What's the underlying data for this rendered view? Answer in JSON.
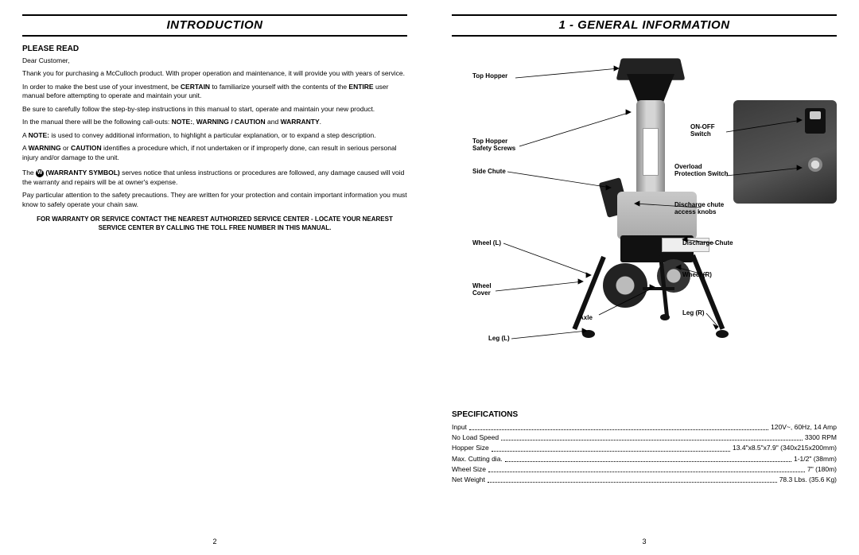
{
  "left": {
    "header": "INTRODUCTION",
    "please_read": "PLEASE READ",
    "dear": "Dear Customer,",
    "p1": "Thank you for purchasing a McCulloch product. With proper operation and maintenance, it will provide you with years of service.",
    "p2a": "In order to make the best use of your investment, be ",
    "p2b": "CERTAIN",
    "p2c": " to familiarize yourself with the contents of the ",
    "p2d": "ENTIRE",
    "p2e": " user manual before attempting to operate and maintain your unit.",
    "p3": "Be sure to carefully follow the step-by-step instructions in this manual to start, operate and maintain your new product.",
    "p4a": "In the manual there will be the following call-outs: ",
    "p4b": "NOTE:",
    "p4c": ", ",
    "p4d": "WARNING / CAUTION",
    "p4e": " and ",
    "p4f": "WARRANTY",
    "p4g": ".",
    "p5a": "A ",
    "p5b": "NOTE:",
    "p5c": " is used to convey additional information, to highlight a particular explanation, or to expand a step description.",
    "p6a": "A ",
    "p6b": "WARNING",
    "p6c": " or ",
    "p6d": "CAUTION",
    "p6e": " identifies a procedure which, if not undertaken or if improperly done, can result in serious personal injury and/or damage to the unit.",
    "p7a": "The ",
    "p7b": "W",
    "p7c": " (WARRANTY SYMBOL)",
    "p7d": " serves notice that unless instructions or procedures are followed, any damage caused will void the warranty and repairs will be at owner's expense.",
    "p8": "Pay particular attention to the safety precautions. They are written for your protection and contain important information you must know to safely operate your chain saw.",
    "centered1": "FOR WARRANTY OR SERVICE CONTACT THE NEAREST AUTHORIZED SERVICE CENTER - LOCATE YOUR NEAREST",
    "centered2": "SERVICE CENTER BY CALLING THE TOLL FREE NUMBER IN THIS MANUAL.",
    "pagenum": "2"
  },
  "right": {
    "header": "1 - GENERAL INFORMATION",
    "labels": {
      "top_hopper": "Top Hopper",
      "safety_screws_l1": "Top Hopper",
      "safety_screws_l2": "Safety Screws",
      "side_chute": "Side Chute",
      "wheel_l": "Wheel (L)",
      "wheel_cover_l1": "Wheel",
      "wheel_cover_l2": "Cover",
      "leg_l": "Leg (L)",
      "axle": "Axle",
      "on_off_l1": "ON-OFF",
      "on_off_l2": "Switch",
      "overload_l1": "Overload",
      "overload_l2": "Protection Switch",
      "knobs_l1": "Discharge chute",
      "knobs_l2": "access knobs",
      "discharge_chute": "Discharge Chute",
      "wheel_r": "Wheel (R)",
      "leg_r": "Leg (R)"
    },
    "specs_title": "SPECIFICATIONS",
    "specs": [
      {
        "label": "Input",
        "value": "120V~, 60Hz, 14 Amp"
      },
      {
        "label": "No Load Speed",
        "value": "3300 RPM"
      },
      {
        "label": "Hopper Size",
        "value": "13.4\"x8.5\"x7.9\"  (340x215x200mm)"
      },
      {
        "label": "Max. Cutting dia.",
        "value": "1-1/2\" (38mm)"
      },
      {
        "label": "Wheel Size",
        "value": "7\" (180m)"
      },
      {
        "label": "Net Weight",
        "value": "78.3 Lbs. (35.6 Kg)"
      }
    ],
    "pagenum": "3"
  }
}
